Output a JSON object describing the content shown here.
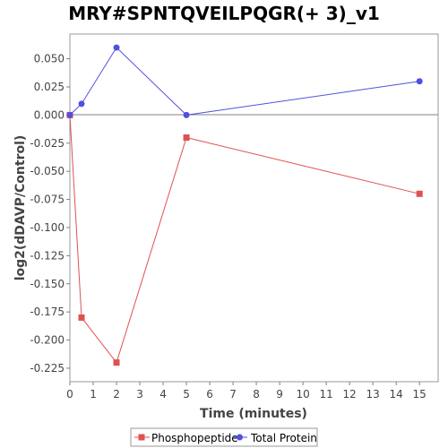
{
  "chart_data": {
    "type": "line",
    "title": "MRY#SPNTQVEILPQGR(+ 3)_v1",
    "xlabel": "Time (minutes)",
    "ylabel": "log2(dDAVP/Control)",
    "xlim": [
      0,
      15.8
    ],
    "ylim": [
      -0.237,
      0.072
    ],
    "x_ticks": [
      0,
      1,
      2,
      3,
      4,
      5,
      6,
      7,
      8,
      9,
      10,
      11,
      12,
      13,
      14,
      15
    ],
    "y_ticks": [
      0.05,
      0.025,
      0.0,
      -0.025,
      -0.05,
      -0.075,
      -0.1,
      -0.125,
      -0.15,
      -0.175,
      -0.2,
      -0.225
    ],
    "y_tick_labels": [
      "0.050",
      "0.025",
      "0.000",
      "-0.025",
      "-0.050",
      "-0.075",
      "-0.100",
      "-0.125",
      "-0.150",
      "-0.175",
      "-0.200",
      "-0.225"
    ],
    "zero_line": true,
    "grid": false,
    "legend_position": "bottom",
    "series": [
      {
        "name": "Phosphopeptide",
        "color": "#e05050",
        "marker": "square",
        "x": [
          0,
          0.5,
          2,
          5,
          15
        ],
        "y": [
          0.0,
          -0.18,
          -0.22,
          -0.02,
          -0.07
        ]
      },
      {
        "name": "Total Protein",
        "color": "#5050e0",
        "marker": "circle",
        "x": [
          0,
          0.5,
          2,
          5,
          15
        ],
        "y": [
          0.0,
          0.01,
          0.06,
          0.0,
          0.03
        ]
      }
    ]
  }
}
